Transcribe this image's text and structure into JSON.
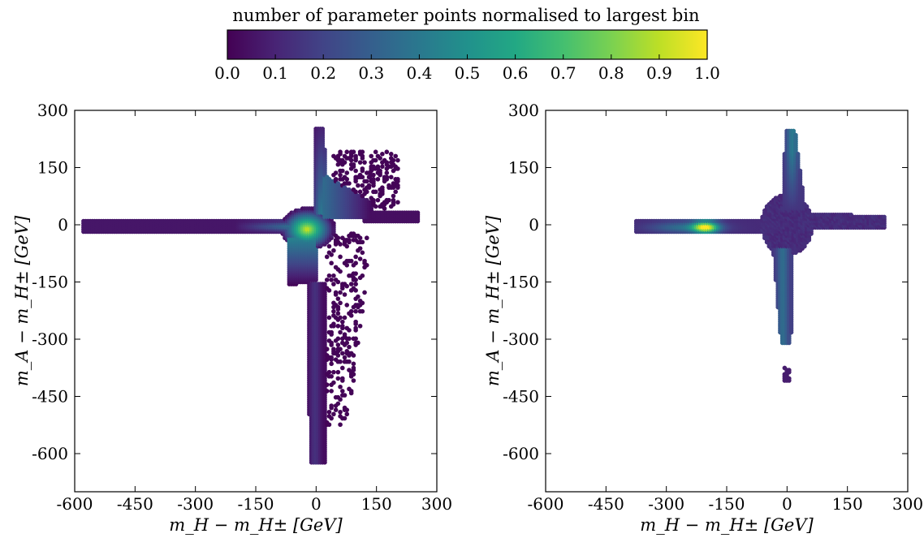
{
  "colorbar": {
    "title": "number of parameter points normalised to largest bin",
    "ticks": [
      "0.0",
      "0.1",
      "0.2",
      "0.3",
      "0.4",
      "0.5",
      "0.6",
      "0.7",
      "0.8",
      "0.9",
      "1.0"
    ],
    "range": [
      0,
      1
    ],
    "colormap": "viridis"
  },
  "chart_data": [
    {
      "type": "heatmap",
      "panel": "left",
      "xlabel": "m_H − m_H± [GeV]",
      "ylabel": "m_A − m_H± [GeV]",
      "xlim": [
        -600,
        300
      ],
      "ylim": [
        -700,
        300
      ],
      "xticks": [
        "-600",
        "-450",
        "-300",
        "-150",
        "0",
        "150",
        "300"
      ],
      "yticks": [
        "300",
        "150",
        "0",
        "-150",
        "-300",
        "-450",
        "-600"
      ],
      "regions": [
        {
          "shape": "horizontal-arm",
          "x": [
            -580,
            0
          ],
          "y": [
            -15,
            10
          ],
          "density": 0.08
        },
        {
          "shape": "horizontal-arm-dense",
          "x": [
            -150,
            0
          ],
          "y": [
            -20,
            15
          ],
          "density": 0.45
        },
        {
          "shape": "core",
          "x": [
            -60,
            40
          ],
          "y": [
            -50,
            40
          ],
          "density": 0.9
        },
        {
          "shape": "upper-arm",
          "x": [
            0,
            30
          ],
          "y": [
            40,
            250
          ],
          "density": 0.35
        },
        {
          "shape": "diagonal-upper",
          "x": [
            30,
            130
          ],
          "y": [
            20,
            110
          ],
          "density": 0.3
        },
        {
          "shape": "diagonal-lower",
          "x": [
            -50,
            0
          ],
          "y": [
            -140,
            -40
          ],
          "density": 0.4
        },
        {
          "shape": "lower-arm",
          "x": [
            -10,
            20
          ],
          "y": [
            -620,
            -150
          ],
          "density": 0.15
        },
        {
          "shape": "scatter-upper-right",
          "x": [
            30,
            200
          ],
          "y": [
            40,
            190
          ],
          "density": 0.02
        },
        {
          "shape": "scatter-lower-right",
          "x": [
            30,
            150
          ],
          "y": [
            -530,
            -20
          ],
          "density": 0.02
        },
        {
          "shape": "right-tail",
          "x": [
            130,
            250
          ],
          "y": [
            10,
            35
          ],
          "density": 0.05
        }
      ]
    },
    {
      "type": "heatmap",
      "panel": "right",
      "xlabel": "m_H − m_H± [GeV]",
      "ylabel": "m_A − m_H± [GeV]",
      "xlim": [
        -600,
        300
      ],
      "ylim": [
        -700,
        300
      ],
      "xticks": [
        "-600",
        "-450",
        "-300",
        "-150",
        "0",
        "150",
        "300"
      ],
      "yticks": [
        "300",
        "150",
        "0",
        "-150",
        "-300",
        "-450",
        "-600"
      ],
      "regions": [
        {
          "shape": "horizontal-arm",
          "x": [
            -370,
            -30
          ],
          "y": [
            -20,
            12
          ],
          "density": 0.15
        },
        {
          "shape": "hotspot",
          "x": [
            -225,
            -175
          ],
          "y": [
            -18,
            8
          ],
          "density": 0.9
        },
        {
          "shape": "core",
          "x": [
            -60,
            60
          ],
          "y": [
            -80,
            60
          ],
          "density": 0.12
        },
        {
          "shape": "upper-arm",
          "x": [
            -10,
            40
          ],
          "y": [
            60,
            245
          ],
          "density": 0.3
        },
        {
          "shape": "lower-arm",
          "x": [
            -30,
            10
          ],
          "y": [
            -310,
            -80
          ],
          "density": 0.3
        },
        {
          "shape": "right-arm",
          "x": [
            40,
            240
          ],
          "y": [
            -10,
            30
          ],
          "density": 0.12
        },
        {
          "shape": "isolated-cluster",
          "x": [
            -10,
            10
          ],
          "y": [
            -410,
            -370
          ],
          "density": 0.1
        }
      ]
    }
  ]
}
